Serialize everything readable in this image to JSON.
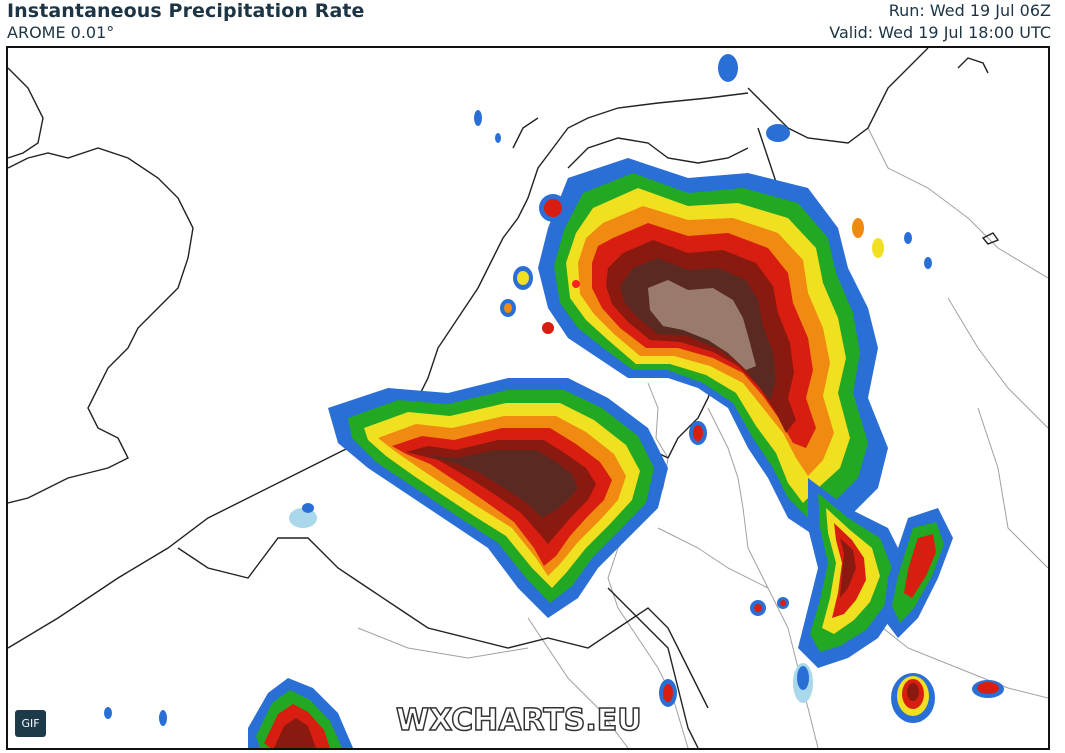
{
  "header": {
    "title": "Instantaneous Precipitation Rate",
    "model": "AROME 0.01°",
    "run": "Run: Wed 19 Jul 06Z",
    "valid": "Valid: Wed 19 Jul 18:00 UTC"
  },
  "map": {
    "watermark": "WXCHARTS.EU",
    "gif_label": "GIF",
    "colors": {
      "light_blue": "#a8d8ea",
      "blue": "#2a6fd6",
      "green": "#22a822",
      "yellow": "#f0e020",
      "orange": "#f08a10",
      "red": "#d81e10",
      "dark_red": "#8a1a10",
      "maroon": "#5a2a22",
      "brown": "#9a7a6a",
      "border": "#999999",
      "coast": "#222222"
    }
  }
}
